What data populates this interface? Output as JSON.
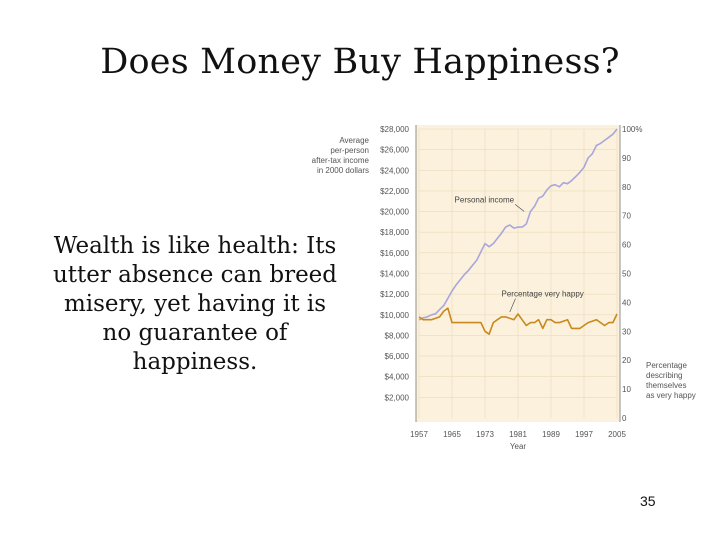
{
  "slide": {
    "title": "Does Money Buy Happiness?",
    "quote_lines": [
      "Wealth is like health: Its",
      "utter absence can breed",
      "misery, yet having it is",
      "no guarantee of",
      "happiness."
    ],
    "page_number": "35"
  },
  "chart_data": {
    "type": "line",
    "xlabel": "Year",
    "x_ticks": [
      "1957",
      "1965",
      "1973",
      "1981",
      "1989",
      "1997",
      "2005"
    ],
    "xlim": [
      1957,
      2005
    ],
    "left_axis": {
      "label_lines": [
        "Average",
        "per-person",
        "after-tax income",
        "in 2000 dollars"
      ],
      "ticks": [
        "$2,000",
        "$4,000",
        "$6,000",
        "$8,000",
        "$10,000",
        "$12,000",
        "$14,000",
        "$16,000",
        "$18,000",
        "$20,000",
        "$22,000",
        "$24,000",
        "$26,000",
        "$28,000"
      ],
      "ylim": [
        0,
        28000
      ]
    },
    "right_axis": {
      "label_lines": [
        "Percentage",
        "describing",
        "themselves",
        "as very happy"
      ],
      "ticks": [
        "0",
        "10",
        "20",
        "30",
        "40",
        "50",
        "60",
        "70",
        "80",
        "90",
        "100%"
      ],
      "ylim": [
        0,
        100
      ]
    },
    "series": [
      {
        "name": "Personal income",
        "axis": "left",
        "color": "#a9a6dc",
        "x": [
          1957,
          1958,
          1959,
          1960,
          1961,
          1962,
          1963,
          1964,
          1965,
          1966,
          1967,
          1968,
          1969,
          1970,
          1971,
          1972,
          1973,
          1974,
          1975,
          1976,
          1977,
          1978,
          1979,
          1980,
          1981,
          1982,
          1983,
          1984,
          1985,
          1986,
          1987,
          1988,
          1989,
          1990,
          1991,
          1992,
          1993,
          1994,
          1995,
          1996,
          1997,
          1998,
          1999,
          2000,
          2001,
          2002,
          2003,
          2004,
          2005
        ],
        "y": [
          9500,
          9700,
          9800,
          10000,
          10100,
          10500,
          10900,
          11600,
          12300,
          12900,
          13400,
          13900,
          14300,
          14800,
          15300,
          16100,
          16900,
          16600,
          16900,
          17400,
          17900,
          18500,
          18700,
          18400,
          18500,
          18500,
          18800,
          20000,
          20500,
          21300,
          21500,
          22100,
          22500,
          22600,
          22400,
          22800,
          22700,
          23000,
          23400,
          23800,
          24300,
          25200,
          25600,
          26400,
          26600,
          26900,
          27200,
          27500,
          28000
        ]
      },
      {
        "name": "Percentage very happy",
        "axis": "right",
        "color": "#c8891e",
        "x": [
          1957,
          1958,
          1960,
          1962,
          1963,
          1964,
          1965,
          1966,
          1972,
          1973,
          1974,
          1975,
          1976,
          1977,
          1978,
          1980,
          1981,
          1982,
          1983,
          1984,
          1985,
          1986,
          1987,
          1988,
          1989,
          1990,
          1991,
          1993,
          1994,
          1996,
          1998,
          2000,
          2002,
          2003,
          2004,
          2005
        ],
        "y": [
          35,
          34,
          34,
          35,
          37,
          38,
          33,
          33,
          33,
          30,
          29,
          33,
          34,
          35,
          35,
          34,
          36,
          34,
          32,
          33,
          33,
          34,
          31,
          34,
          34,
          33,
          33,
          34,
          31,
          31,
          33,
          34,
          32,
          33,
          33,
          36
        ]
      }
    ],
    "annotations": [
      {
        "text": "Personal income",
        "x": 1982,
        "y_left": 20600
      },
      {
        "text": "Percentage very happy",
        "x": 1977,
        "y_right": 42
      }
    ],
    "grid": true
  }
}
